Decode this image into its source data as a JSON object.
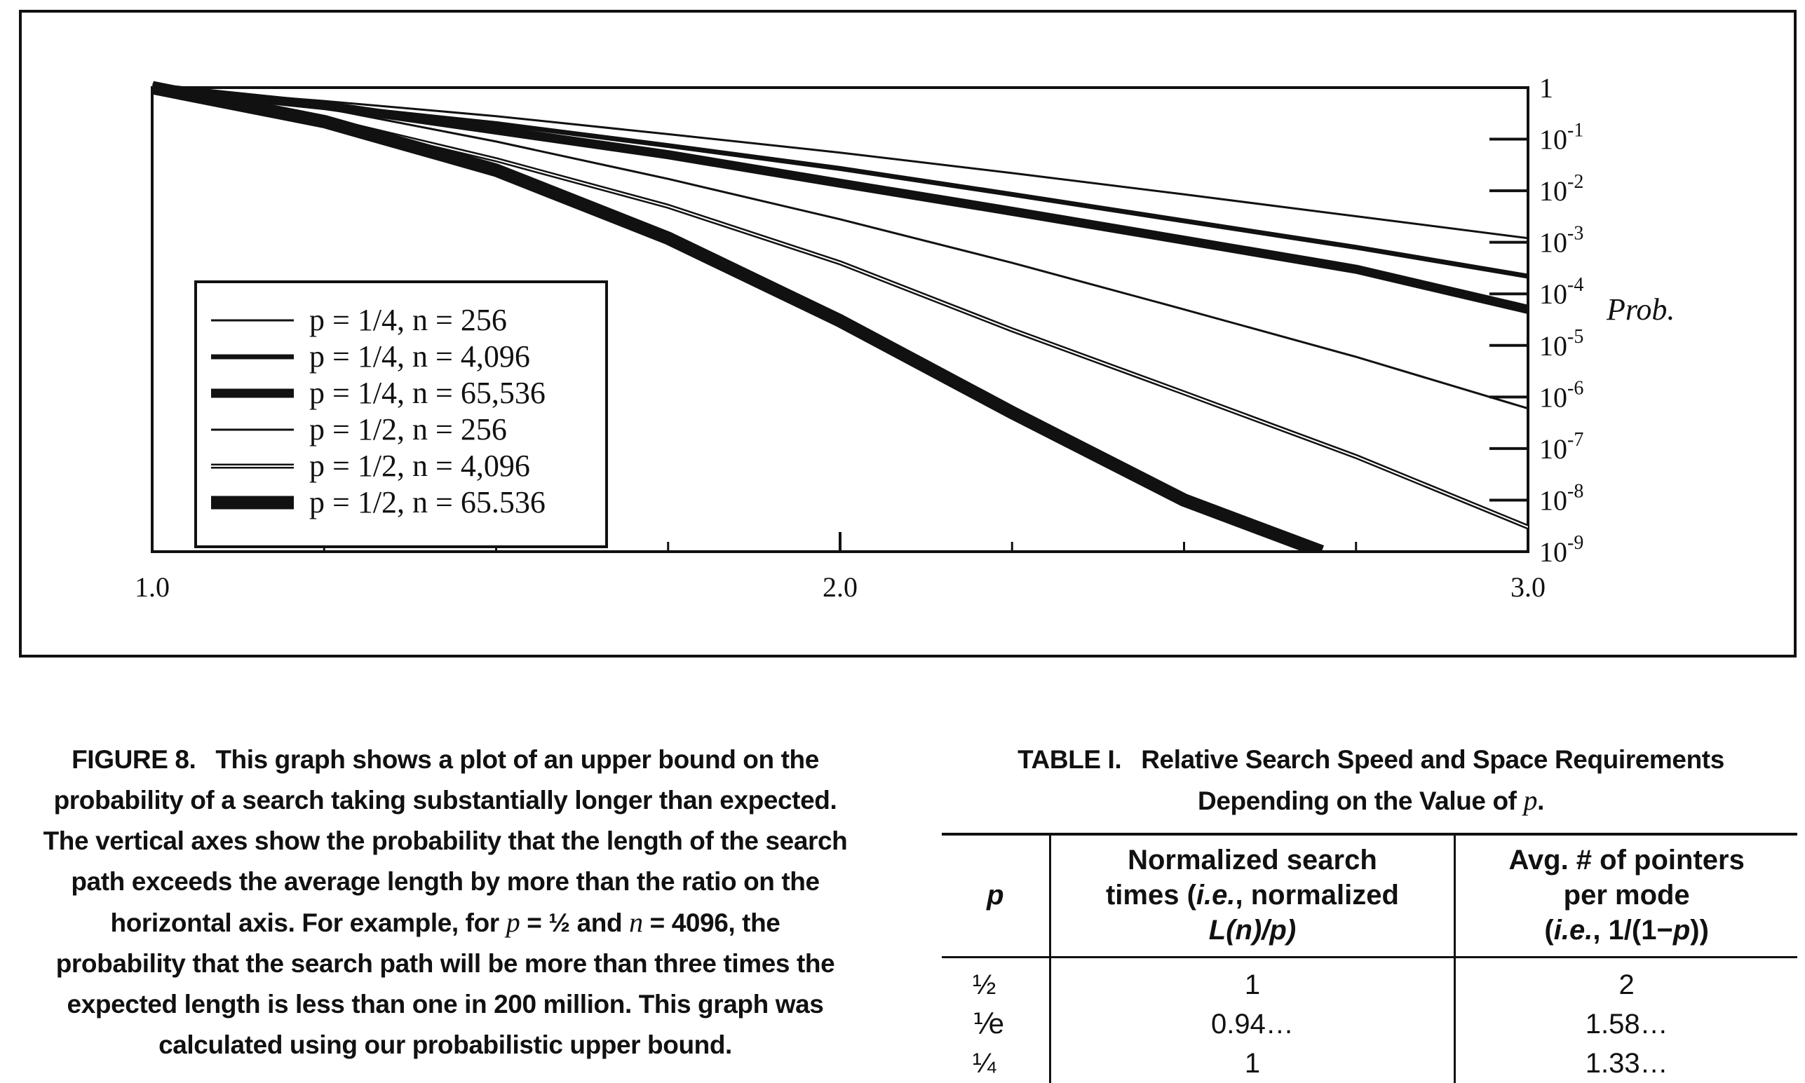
{
  "chart_data": {
    "type": "line",
    "title": "",
    "xlabel": "",
    "ylabel": "Prob.",
    "xlim": [
      1.0,
      3.0
    ],
    "x_tick_labels": [
      "1.0",
      "2.0",
      "3.0"
    ],
    "x_minor_ticks": [
      1.25,
      1.5,
      1.75,
      2.0,
      2.25,
      2.5,
      2.75
    ],
    "y_scale": "log",
    "ylim": [
      1e-09,
      1
    ],
    "y_ticks": [
      {
        "value": 1,
        "label": "1",
        "base": "1",
        "exp": ""
      },
      {
        "value": 0.1,
        "label": "10-1",
        "base": "10",
        "exp": "-1"
      },
      {
        "value": 0.01,
        "label": "10-2",
        "base": "10",
        "exp": "-2"
      },
      {
        "value": 0.001,
        "label": "10-3",
        "base": "10",
        "exp": "-3"
      },
      {
        "value": 0.0001,
        "label": "10-4",
        "base": "10",
        "exp": "-4"
      },
      {
        "value": 1e-05,
        "label": "10-5",
        "base": "10",
        "exp": "-5"
      },
      {
        "value": 1e-06,
        "label": "10-6",
        "base": "10",
        "exp": "-6"
      },
      {
        "value": 1e-07,
        "label": "10-7",
        "base": "10",
        "exp": "-7"
      },
      {
        "value": 1e-08,
        "label": "10-8",
        "base": "10",
        "exp": "-8"
      },
      {
        "value": 1e-09,
        "label": "10-9",
        "base": "10",
        "exp": "-9"
      }
    ],
    "y_axis_side": "right",
    "grid": false,
    "legend_position": "bottom-left",
    "series": [
      {
        "name": "p = 1/4, n = 256",
        "p": "1/4",
        "n": "256",
        "style": "thin",
        "x": [
          1.0,
          1.25,
          1.5,
          1.75,
          2.0,
          2.25,
          2.5,
          2.75,
          3.0
        ],
        "y": [
          1,
          0.55,
          0.28,
          0.125,
          0.055,
          0.022,
          0.0085,
          0.0032,
          0.0012
        ]
      },
      {
        "name": "p = 1/4, n = 4,096",
        "p": "1/4",
        "n": "4,096",
        "style": "medium",
        "x": [
          1.0,
          1.25,
          1.5,
          1.75,
          2.0,
          2.25,
          2.5,
          2.75,
          3.0
        ],
        "y": [
          1,
          0.45,
          0.2,
          0.075,
          0.027,
          0.0085,
          0.0026,
          0.0008,
          0.00022
        ]
      },
      {
        "name": "p = 1/4, n = 65,536",
        "p": "1/4",
        "n": "65,536",
        "style": "thick",
        "x": [
          1.0,
          1.25,
          1.5,
          1.75,
          2.0,
          2.25,
          2.5,
          2.75,
          3.0
        ],
        "y": [
          1,
          0.45,
          0.15,
          0.05,
          0.014,
          0.004,
          0.0011,
          0.0003,
          5e-05
        ]
      },
      {
        "name": "p = 1/2, n = 256",
        "p": "1/2",
        "n": "256",
        "style": "thin",
        "x": [
          1.0,
          1.25,
          1.5,
          1.75,
          2.0,
          2.25,
          2.5,
          2.75,
          3.0
        ],
        "y": [
          1,
          0.4,
          0.09,
          0.017,
          0.0028,
          0.0004,
          5e-05,
          6e-06,
          6e-07
        ]
      },
      {
        "name": "p = 1/2, n = 4,096",
        "p": "1/2",
        "n": "4,096",
        "style": "double",
        "x": [
          1.0,
          1.25,
          1.5,
          1.75,
          2.0,
          2.25,
          2.5,
          2.75,
          3.0
        ],
        "y": [
          1,
          0.25,
          0.04,
          0.005,
          0.0004,
          2e-05,
          1.2e-06,
          7e-08,
          3e-09
        ]
      },
      {
        "name": "p = 1/2, n = 65.536",
        "p": "1/2",
        "n": "65.536",
        "style": "heavy",
        "x": [
          1.0,
          1.25,
          1.5,
          1.75,
          2.0,
          2.25,
          2.5,
          2.7
        ],
        "y": [
          1,
          0.22,
          0.025,
          0.0012,
          3e-05,
          5e-07,
          1e-08,
          1e-09
        ]
      }
    ]
  },
  "caption": {
    "label": "FIGURE 8.",
    "line1": "This graph shows a plot of an upper bound on the",
    "line2": "probability of a search taking substantially longer than expected.",
    "line3": "The vertical axes show the probability that the length of the search",
    "line4": "path exceeds the average length by more than the ratio on the",
    "line5a": "horizontal axis. For example, for",
    "line5_p": "p",
    "line5b": "= ½ and",
    "line5_n": "n",
    "line5c": "= 4096, the",
    "line6": "probability that the search path will be more than three times the",
    "line7": "expected length is less than one in 200 million. This graph was",
    "line8": "calculated using our probabilistic upper bound."
  },
  "table": {
    "label": "TABLE I.",
    "title1": "Relative Search Speed and Space Requirements",
    "title2a": "Depending on the Value of",
    "title2_var": "p",
    "title2b": ".",
    "headers": {
      "p": "p",
      "search_line1": "Normalized search",
      "search_line2a": "times (",
      "search_ie": "i.e.",
      "search_line2b": ", normalized",
      "search_line3": "L(n)/p)",
      "pointers_line1": "Avg. # of pointers",
      "pointers_line2": "per mode",
      "pointers_line3a": "(",
      "pointers_ie": "i.e.",
      "pointers_line3b": ", 1/(1−",
      "pointers_p": "p",
      "pointers_line3c": "))"
    },
    "rows": [
      {
        "p": "½",
        "search": "1",
        "pointers": "2"
      },
      {
        "p": "⅟e",
        "search": "0.94…",
        "pointers": "1.58…"
      },
      {
        "p": "¼",
        "search": "1",
        "pointers": "1.33…"
      }
    ]
  }
}
